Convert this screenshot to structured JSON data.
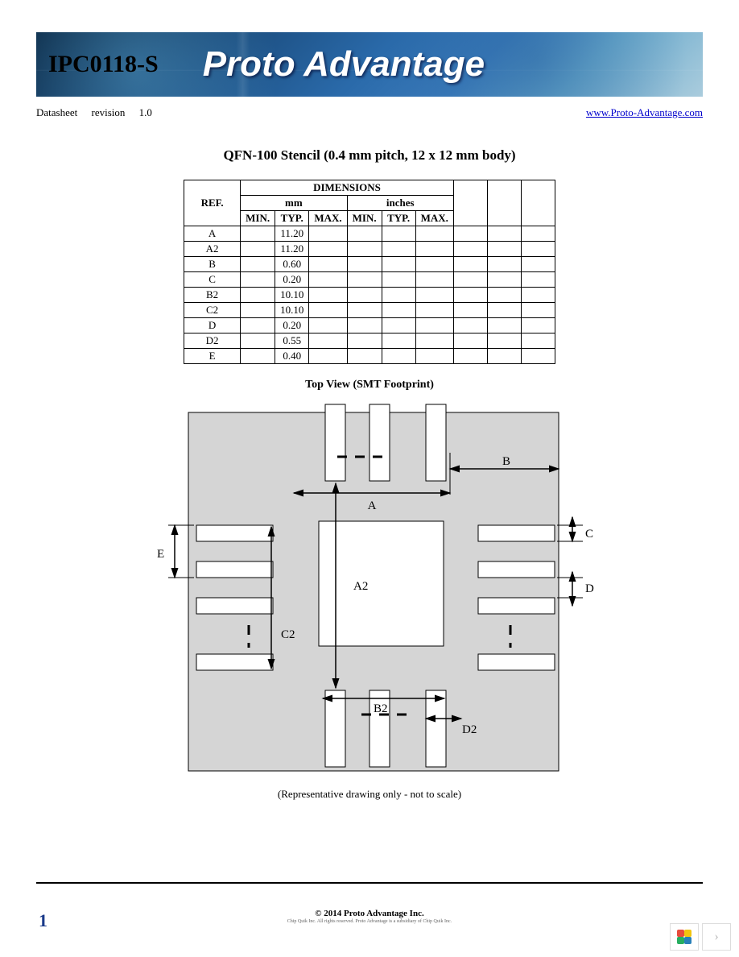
{
  "header": {
    "part_number": "IPC0118-S",
    "brand": "Proto Advantage"
  },
  "subheader": {
    "doc_type": "Datasheet",
    "revision_label": "revision",
    "revision_value": "1.0",
    "url": "www.Proto-Advantage.com"
  },
  "title": "QFN-100 Stencil (0.4 mm pitch, 12 x 12 mm body)",
  "table": {
    "header_main": "DIMENSIONS",
    "ref_label": "REF.",
    "unit1": "mm",
    "unit2": "inches",
    "sub_headers": [
      "MIN.",
      "TYP.",
      "MAX.",
      "MIN.",
      "TYP.",
      "MAX."
    ],
    "rows": [
      {
        "ref": "A",
        "typ": "11.20"
      },
      {
        "ref": "A2",
        "typ": "11.20"
      },
      {
        "ref": "B",
        "typ": "0.60"
      },
      {
        "ref": "C",
        "typ": "0.20"
      },
      {
        "ref": "B2",
        "typ": "10.10"
      },
      {
        "ref": "C2",
        "typ": "10.10"
      },
      {
        "ref": "D",
        "typ": "0.20"
      },
      {
        "ref": "D2",
        "typ": "0.55"
      },
      {
        "ref": "E",
        "typ": "0.40"
      }
    ]
  },
  "diagram": {
    "title": "Top View (SMT Footprint)",
    "caption": "(Representative drawing only - not to scale)",
    "bg_color": "#d5d5d5",
    "pad_fill": "#ffffff",
    "stroke": "#000000",
    "body_size": 500,
    "labels": {
      "A": "A",
      "A2": "A2",
      "B": "B",
      "B2": "B2",
      "C": "C",
      "C2": "C2",
      "D": "D",
      "D2": "D2",
      "E": "E"
    }
  },
  "footer": {
    "page": "1",
    "copyright": "© 2014 Proto Advantage Inc."
  },
  "widget": {
    "petal_colors": [
      "#e74c3c",
      "#f1c40f",
      "#27ae60",
      "#2980b9"
    ],
    "chevron": "›"
  }
}
